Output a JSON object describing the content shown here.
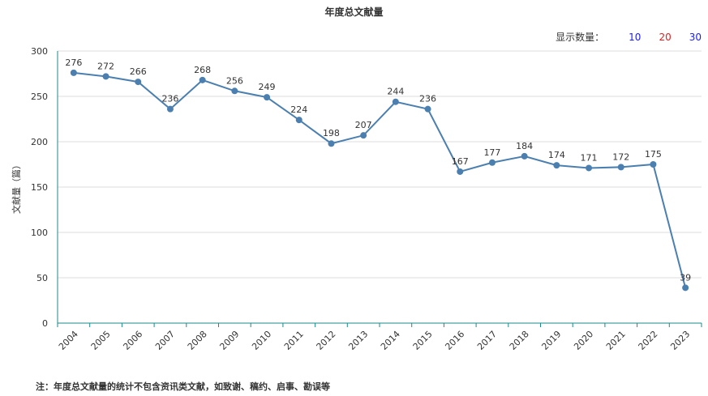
{
  "header": {
    "title": "年度总文献量"
  },
  "count_selector": {
    "label": "显示数量：",
    "options": [
      {
        "label": "10",
        "color": "#1a1aff"
      },
      {
        "label": "20",
        "color": "#e02020"
      },
      {
        "label": "30",
        "color": "#1a1aff"
      }
    ]
  },
  "footnote": "注：年度总文献量的统计不包含资讯类文献，如致谢、稿约、启事、勘误等",
  "chart_data": {
    "type": "line",
    "title": "年度总文献量",
    "ylabel": "文献量（篇）",
    "xlabel": "",
    "ylim": [
      0,
      300
    ],
    "yticks": [
      0,
      50,
      100,
      150,
      200,
      250,
      300
    ],
    "categories": [
      "2004",
      "2005",
      "2006",
      "2007",
      "2008",
      "2009",
      "2010",
      "2011",
      "2012",
      "2013",
      "2014",
      "2015",
      "2016",
      "2017",
      "2018",
      "2019",
      "2020",
      "2021",
      "2022",
      "2023"
    ],
    "series": [
      {
        "values": [
          276,
          272,
          266,
          236,
          268,
          256,
          249,
          224,
          198,
          207,
          244,
          236,
          167,
          177,
          184,
          174,
          171,
          172,
          175,
          39
        ],
        "color": "#4a7fb0"
      }
    ],
    "grid": true,
    "data_labels": true
  }
}
